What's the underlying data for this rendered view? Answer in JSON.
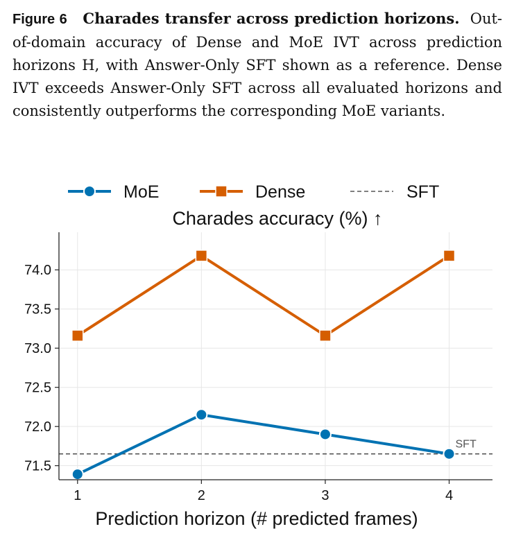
{
  "caption": {
    "figure_label": "Figure 6",
    "title": "Charades transfer across prediction horizons.",
    "body": "Out-of-domain accuracy of Dense and MoE IVT across prediction horizons H, with Answer-Only SFT shown as a reference. Dense IVT exceeds Answer-Only SFT across all evaluated horizons and consistently outperforms the corresponding MoE variants."
  },
  "chart_data": {
    "type": "line",
    "title": "Charades accuracy (%) ↑",
    "xlabel": "Prediction horizon (# predicted frames)",
    "ylabel": "",
    "x": [
      1,
      2,
      3,
      4
    ],
    "xticks": [
      "1",
      "2",
      "3",
      "4"
    ],
    "yticks": [
      "71.5",
      "72.0",
      "72.5",
      "73.0",
      "73.5",
      "74.0"
    ],
    "ytick_values": [
      71.5,
      72.0,
      72.5,
      73.0,
      73.5,
      74.0
    ],
    "xlim": [
      0.85,
      4.35
    ],
    "ylim": [
      71.32,
      74.48
    ],
    "grid": true,
    "legend_position": "top",
    "series": [
      {
        "name": "MoE",
        "values": [
          71.39,
          72.15,
          71.9,
          71.65
        ],
        "color": "#0072B2",
        "marker": "circle"
      },
      {
        "name": "Dense",
        "values": [
          73.16,
          74.18,
          73.16,
          74.18
        ],
        "color": "#D55E00",
        "marker": "square"
      }
    ],
    "reference": {
      "name": "SFT",
      "value": 71.65,
      "label": "SFT",
      "color": "#555555",
      "style": "dashed"
    }
  }
}
